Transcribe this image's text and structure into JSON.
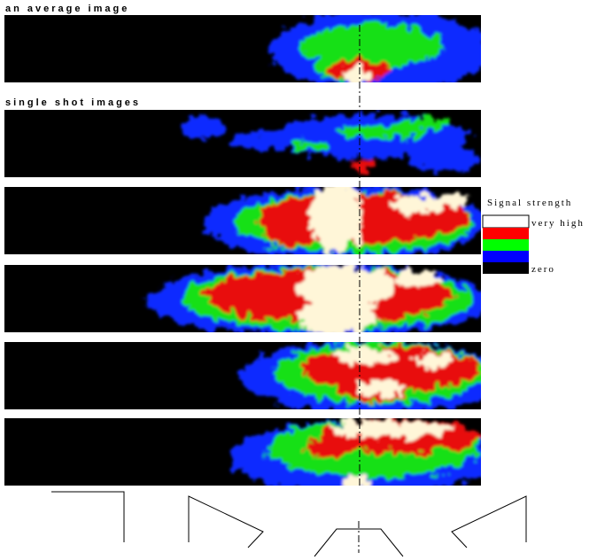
{
  "header": {
    "title": "an average image"
  },
  "section": {
    "title": "single shot images"
  },
  "legend": {
    "title": "Signal strength",
    "high": "very high",
    "low": "zero"
  }
}
